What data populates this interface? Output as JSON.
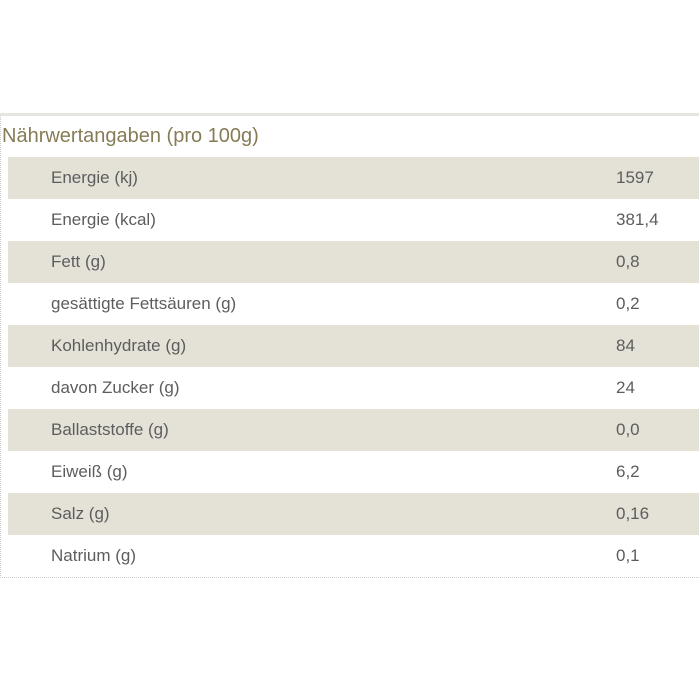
{
  "panel": {
    "title": "Nährwertangaben (pro 100g)",
    "unit_note": "pro 100g",
    "rows": [
      {
        "label": "Energie (kj)",
        "value": "1597"
      },
      {
        "label": "Energie (kcal)",
        "value": "381,4"
      },
      {
        "label": "Fett (g)",
        "value": "0,8"
      },
      {
        "label": "gesättigte Fettsäuren (g)",
        "value": "0,2"
      },
      {
        "label": "Kohlenhydrate (g)",
        "value": "84"
      },
      {
        "label": "davon Zucker (g)",
        "value": "24"
      },
      {
        "label": "Ballaststoffe (g)",
        "value": "0,0"
      },
      {
        "label": "Eiweiß (g)",
        "value": "6,2"
      },
      {
        "label": "Salz (g)",
        "value": "0,16"
      },
      {
        "label": "Natrium (g)",
        "value": "0,1"
      }
    ],
    "colors": {
      "title_text": "#867c55",
      "row_shaded_bg": "#e4e1d7",
      "row_plain_bg": "#ffffff",
      "row_text": "#5d5d5d",
      "top_rule": "#e6e5e0",
      "dotted_border": "#c9c9c6"
    }
  }
}
